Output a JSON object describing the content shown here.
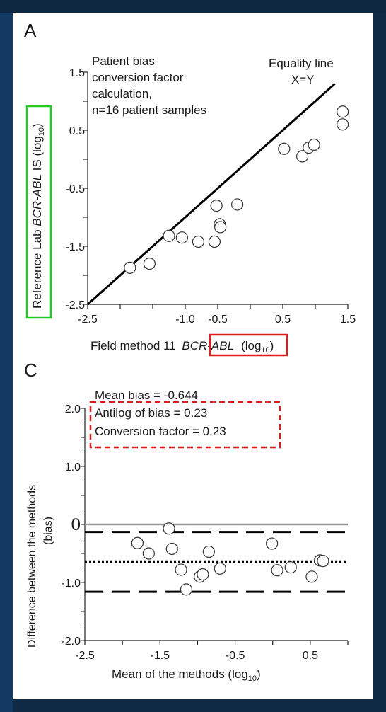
{
  "chart_data": [
    {
      "panel": "A",
      "type": "scatter",
      "xlabel_pre": "Field method 11 ",
      "xlabel_gene": "BCR-ABL",
      "xlabel_log": "(log",
      "xlabel_sub": "10",
      "xlabel_close": ")",
      "ylabel_pre": "Reference Lab ",
      "ylabel_gene": "BCR-ABL",
      "ylabel_mid": " IS (log",
      "ylabel_sub": "10",
      "ylabel_close": ")",
      "xlim": [
        -2.5,
        1.5
      ],
      "ylim": [
        -2.5,
        1.5
      ],
      "xticks": [
        "-2.5",
        "-1.0",
        "-0.5",
        "0.5",
        "1.5"
      ],
      "yticks": [
        "1.5",
        "0.5",
        "-0.5",
        "-1.5",
        "-2.5"
      ],
      "ytick_values": [
        1.5,
        0.5,
        -0.5,
        -1.5,
        -2.5
      ],
      "annotation_lines": [
        "Patient bias",
        "conversion factor",
        "calculation,",
        "n=16 patient samples"
      ],
      "equality_label": [
        "Equality line",
        "X=Y"
      ],
      "line": {
        "x": [
          -2.5,
          1.3
        ],
        "y": [
          -2.5,
          1.3
        ]
      },
      "points": [
        {
          "x": -1.85,
          "y": -1.87
        },
        {
          "x": -1.55,
          "y": -1.8
        },
        {
          "x": -1.25,
          "y": -1.32
        },
        {
          "x": -1.05,
          "y": -1.35
        },
        {
          "x": -0.8,
          "y": -1.42
        },
        {
          "x": -0.55,
          "y": -1.42
        },
        {
          "x": -0.52,
          "y": -0.8
        },
        {
          "x": -0.47,
          "y": -1.12
        },
        {
          "x": -0.46,
          "y": -1.17
        },
        {
          "x": -0.2,
          "y": -0.78
        },
        {
          "x": 0.52,
          "y": 0.18
        },
        {
          "x": 0.8,
          "y": 0.05
        },
        {
          "x": 0.9,
          "y": 0.2
        },
        {
          "x": 0.98,
          "y": 0.25
        },
        {
          "x": 1.42,
          "y": 0.82
        },
        {
          "x": 1.42,
          "y": 0.6
        }
      ]
    },
    {
      "panel": "C",
      "type": "scatter",
      "xlabel": "Mean of the methods (log",
      "xlabel_sub": "10",
      "xlabel_close": ")",
      "ylabel_1": "Difference between the methods",
      "ylabel_2": "(bias)",
      "xlim": [
        -2.5,
        1.0
      ],
      "ylim": [
        -2.0,
        2.0
      ],
      "xticks": [
        "-2.5",
        "-1.5",
        "-0.5",
        "0.5"
      ],
      "yticks": [
        "2.0",
        "1.0",
        "0",
        "-1.0",
        "-2.0"
      ],
      "ytick_values": [
        2.0,
        1.0,
        0,
        -1.0,
        -2.0
      ],
      "annotations": [
        "Mean bias = -0.644",
        "Antilog of bias = 0.23",
        "Conversion factor = 0.23"
      ],
      "mean_bias": -0.644,
      "loa_upper": -0.13,
      "loa_lower": -1.16,
      "points": [
        {
          "x": -1.8,
          "y": -0.32
        },
        {
          "x": -1.65,
          "y": -0.5
        },
        {
          "x": -1.38,
          "y": -0.07
        },
        {
          "x": -1.34,
          "y": -0.42
        },
        {
          "x": -1.22,
          "y": -0.78
        },
        {
          "x": -1.15,
          "y": -1.12
        },
        {
          "x": -0.97,
          "y": -0.9
        },
        {
          "x": -0.93,
          "y": -0.86
        },
        {
          "x": -0.85,
          "y": -0.47
        },
        {
          "x": -0.7,
          "y": -0.76
        },
        {
          "x": -0.01,
          "y": -0.33
        },
        {
          "x": 0.06,
          "y": -0.79
        },
        {
          "x": 0.24,
          "y": -0.74
        },
        {
          "x": 0.52,
          "y": -0.9
        },
        {
          "x": 0.63,
          "y": -0.62
        },
        {
          "x": 0.67,
          "y": -0.63
        }
      ]
    }
  ],
  "labels": {
    "panel_a": "A",
    "panel_c": "C"
  },
  "colors": {
    "highlight_green": "#22cc22",
    "highlight_red": "#e01b1b",
    "background": "#0f2a44"
  }
}
